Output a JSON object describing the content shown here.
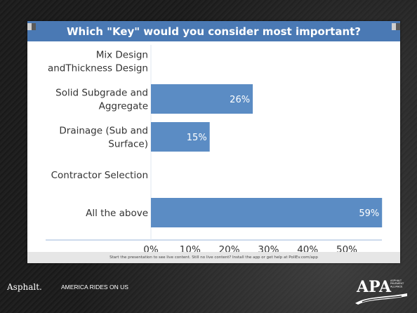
{
  "poll": {
    "question": "Which \"Key\" would you consider most important?",
    "footer_note": "Start the presentation to see live content. Still no live content? Install the app or get help at PollEv.com/app"
  },
  "bottom_bar": {
    "brand": "Asphalt.",
    "tagline": "AMERICA RIDES ON US",
    "logo_text": "APA",
    "logo_subtext": "ASPHALT PAVEMENT ALLIANCE"
  },
  "colors": {
    "header": "#4a79b4",
    "bar": "#5b8cc4",
    "grid": "#dfe7f2"
  },
  "chart_data": {
    "type": "bar",
    "orientation": "horizontal",
    "title": "Which \"Key\" would you consider most important?",
    "categories": [
      [
        "Mix Design",
        "andThickness Design"
      ],
      [
        "Solid Subgrade and",
        "Aggregate"
      ],
      [
        "Drainage (Sub and",
        "Surface)"
      ],
      [
        "Contractor Selection"
      ],
      [
        "All the above"
      ]
    ],
    "values": [
      0,
      26,
      15,
      0,
      59
    ],
    "data_labels": [
      "",
      "26%",
      "15%",
      "",
      "59%"
    ],
    "x_ticks": [
      "0%",
      "10%",
      "20%",
      "30%",
      "40%",
      "50%"
    ],
    "xlim": [
      0,
      58.5
    ],
    "grid": false,
    "legend": "none"
  }
}
